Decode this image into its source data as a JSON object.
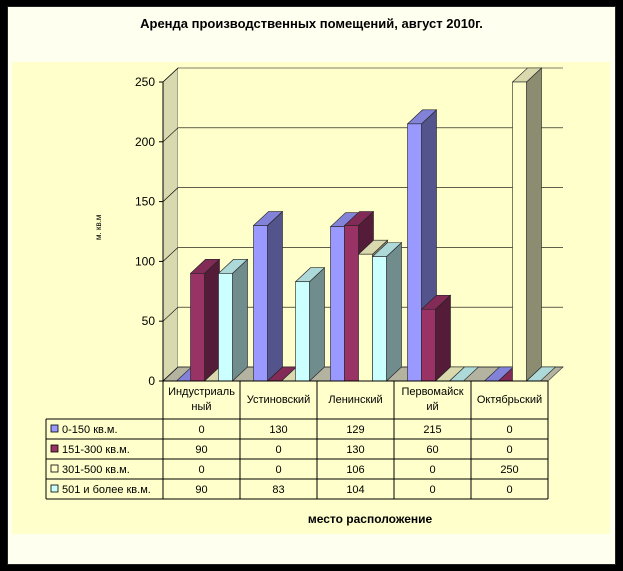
{
  "chart_data": {
    "type": "bar",
    "title": "Аренда производственных помещений, август 2010г.",
    "xlabel": "место расположение",
    "ylabel": "м. кв.м",
    "ylim": [
      0,
      250
    ],
    "yticks": [
      0,
      50,
      100,
      150,
      200,
      250
    ],
    "categories": [
      "Индустриальный",
      "Устиновский",
      "Ленинский",
      "Первомайский",
      "Октябрьский"
    ],
    "category_display": [
      "Индустриаль ный",
      "Устиновский",
      "Ленинский",
      "Первомайск ий",
      "Октябрьский"
    ],
    "series": [
      {
        "name": "0-150 кв.м.",
        "values": [
          0,
          130,
          129,
          215,
          0
        ],
        "color": "#9999ff"
      },
      {
        "name": "151-300 кв.м.",
        "values": [
          90,
          0,
          130,
          60,
          0
        ],
        "color": "#993366"
      },
      {
        "name": "301-500 кв.м.",
        "values": [
          0,
          0,
          106,
          0,
          250
        ],
        "color": "#ffffcc"
      },
      {
        "name": "501 и более кв.м.",
        "values": [
          90,
          83,
          104,
          0,
          0
        ],
        "color": "#ccffff"
      }
    ],
    "table_cells": [
      [
        "0",
        "130",
        "129",
        "215",
        "0"
      ],
      [
        "90",
        "0",
        "130",
        "60",
        "0"
      ],
      [
        "0",
        "0",
        "106",
        "0",
        "250"
      ],
      [
        "90",
        "83",
        "104",
        "0",
        "0"
      ]
    ]
  }
}
